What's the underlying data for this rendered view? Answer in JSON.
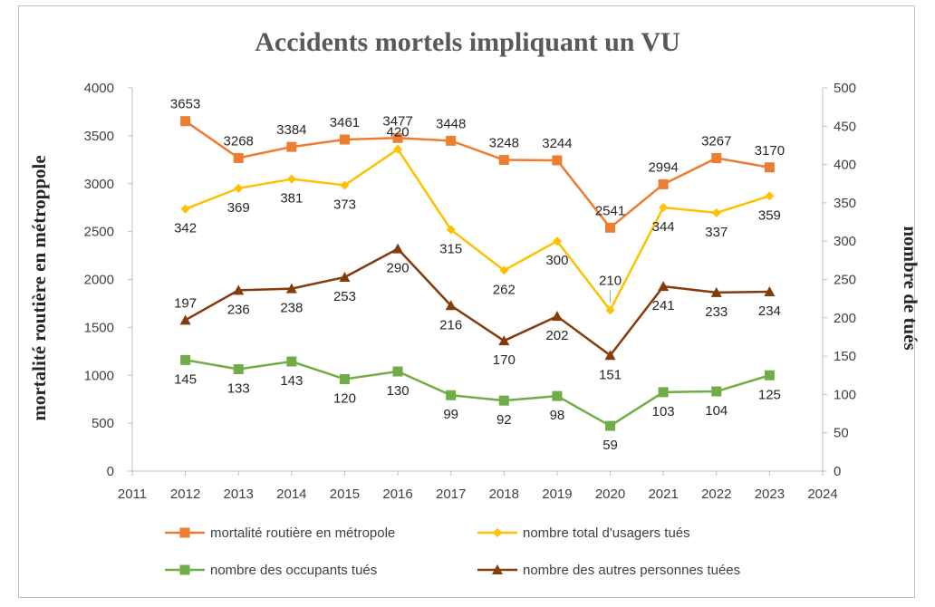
{
  "chart_data": {
    "type": "line",
    "title": "Accidents mortels impliquant un VU",
    "ylabel": "mortalité routière en métroppole",
    "y2label": "nombre de tués",
    "xlim": [
      2011,
      2024
    ],
    "x_ticks": [
      2011,
      2012,
      2013,
      2014,
      2015,
      2016,
      2017,
      2018,
      2019,
      2020,
      2021,
      2022,
      2023,
      2024
    ],
    "ylim": [
      0,
      4000
    ],
    "y_ticks": [
      0,
      500,
      1000,
      1500,
      2000,
      2500,
      3000,
      3500,
      4000
    ],
    "y2lim": [
      0,
      500
    ],
    "y2_ticks": [
      0,
      50,
      100,
      150,
      200,
      250,
      300,
      350,
      400,
      450,
      500
    ],
    "grid": false,
    "legend_position": "bottom",
    "x": [
      2012,
      2013,
      2014,
      2015,
      2016,
      2017,
      2018,
      2019,
      2020,
      2021,
      2022,
      2023
    ],
    "series": [
      {
        "name": "mortalité routière en métropole",
        "axis": "left",
        "color": "#ED7D31",
        "marker": "square",
        "values": [
          3653,
          3268,
          3384,
          3461,
          3477,
          3448,
          3248,
          3244,
          2541,
          2994,
          3267,
          3170
        ],
        "label_pos": "above"
      },
      {
        "name": "nombre total d'usagers tués",
        "axis": "right",
        "color": "#FFC000",
        "marker": "diamond",
        "values": [
          342,
          369,
          381,
          373,
          420,
          315,
          262,
          300,
          210,
          344,
          337,
          359
        ],
        "label_pos": [
          "below",
          "below",
          "below",
          "below",
          "above",
          "below",
          "below",
          "below",
          "above",
          "below",
          "below",
          "below"
        ]
      },
      {
        "name": "nombre des occupants tués",
        "axis": "right",
        "color": "#70AD47",
        "marker": "square",
        "values": [
          145,
          133,
          143,
          120,
          130,
          99,
          92,
          98,
          59,
          103,
          104,
          125
        ],
        "label_pos": "below"
      },
      {
        "name": "nombre des autres personnes tuées",
        "axis": "right",
        "color": "#843C0C",
        "marker": "triangle",
        "values": [
          197,
          236,
          238,
          253,
          290,
          216,
          170,
          202,
          151,
          241,
          233,
          234
        ],
        "label_pos": [
          "above",
          "below",
          "below",
          "below",
          "below",
          "below",
          "below",
          "below",
          "below",
          "below",
          "below",
          "below"
        ]
      }
    ]
  }
}
